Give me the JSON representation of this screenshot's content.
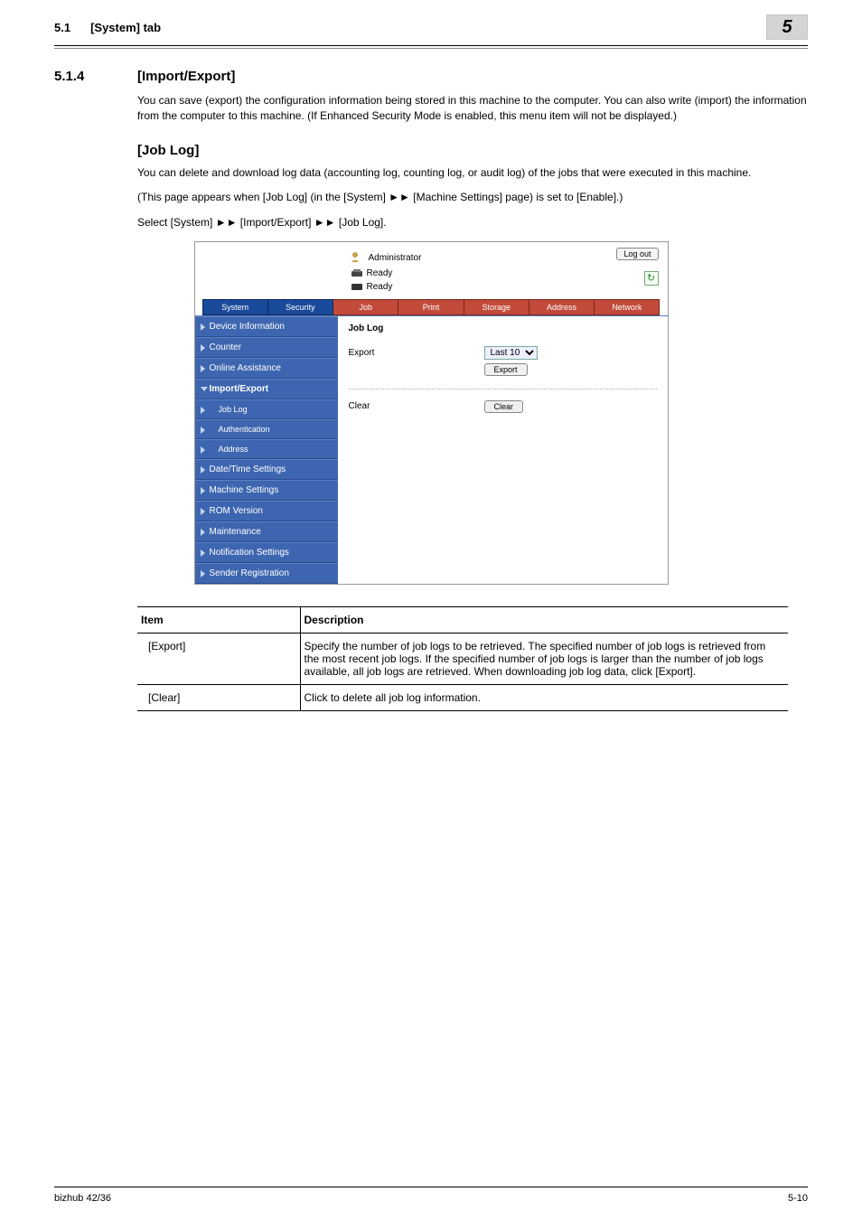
{
  "header": {
    "section_num": "5.1",
    "section_title": "[System] tab",
    "chapter": "5"
  },
  "section": {
    "num": "5.1.4",
    "title": "[Import/Export]"
  },
  "intro_para": "You can save (export) the configuration information being stored in this machine to the computer. You can also write (import) the information from the computer to this machine. (If Enhanced Security Mode is enabled, this menu item will not be displayed.)",
  "sub": {
    "title": "[Job Log]",
    "p1": "You can delete and download log data (accounting log, counting log, or audit log) of the jobs that were executed in this machine.",
    "p2": "(This page appears when [Job Log] (in the [System] ►► [Machine Settings] page) is set to [Enable].)",
    "p3": "Select [System] ►► [Import/Export] ►► [Job Log]."
  },
  "webui": {
    "role": "Administrator",
    "ready1": "Ready",
    "ready2": "Ready",
    "logout": "Log out",
    "tabs": [
      "System",
      "Security",
      "Job",
      "Print",
      "Storage",
      "Address",
      "Network"
    ],
    "side": [
      {
        "label": "Device Information",
        "tri": true
      },
      {
        "label": "Counter",
        "tri": true
      },
      {
        "label": "Online Assistance",
        "tri": true
      },
      {
        "label": "Import/Export",
        "tri": true,
        "open": true,
        "bold": true
      },
      {
        "label": "Job Log",
        "tri": true,
        "sub": true
      },
      {
        "label": "Authentication",
        "tri": true,
        "sub": true
      },
      {
        "label": "Address",
        "tri": true,
        "sub": true
      },
      {
        "label": "Date/Time Settings",
        "tri": true
      },
      {
        "label": "Machine Settings",
        "tri": true
      },
      {
        "label": "ROM Version",
        "tri": true
      },
      {
        "label": "Maintenance",
        "tri": true
      },
      {
        "label": "Notification Settings",
        "tri": true
      },
      {
        "label": "Sender Registration",
        "tri": true
      }
    ],
    "content": {
      "title": "Job Log",
      "export_label": "Export",
      "export_option": "Last 10",
      "export_btn": "Export",
      "clear_label": "Clear",
      "clear_btn": "Clear"
    }
  },
  "table": {
    "h1": "Item",
    "h2": "Description",
    "rows": [
      {
        "item": "[Export]",
        "desc": "Specify the number of job logs to be retrieved. The specified number of job logs is retrieved from the most recent job logs. If the specified number of job logs is larger than the number of job logs available, all job logs are retrieved. When downloading job log data, click [Export]."
      },
      {
        "item": "[Clear]",
        "desc": "Click to delete all job log information."
      }
    ]
  },
  "footer": {
    "left": "bizhub 42/36",
    "right": "5-10"
  },
  "colors": {
    "tab_blue": "#1a4a9a",
    "tab_red": "#c24a3a",
    "side_bg": "#3e66b0"
  }
}
